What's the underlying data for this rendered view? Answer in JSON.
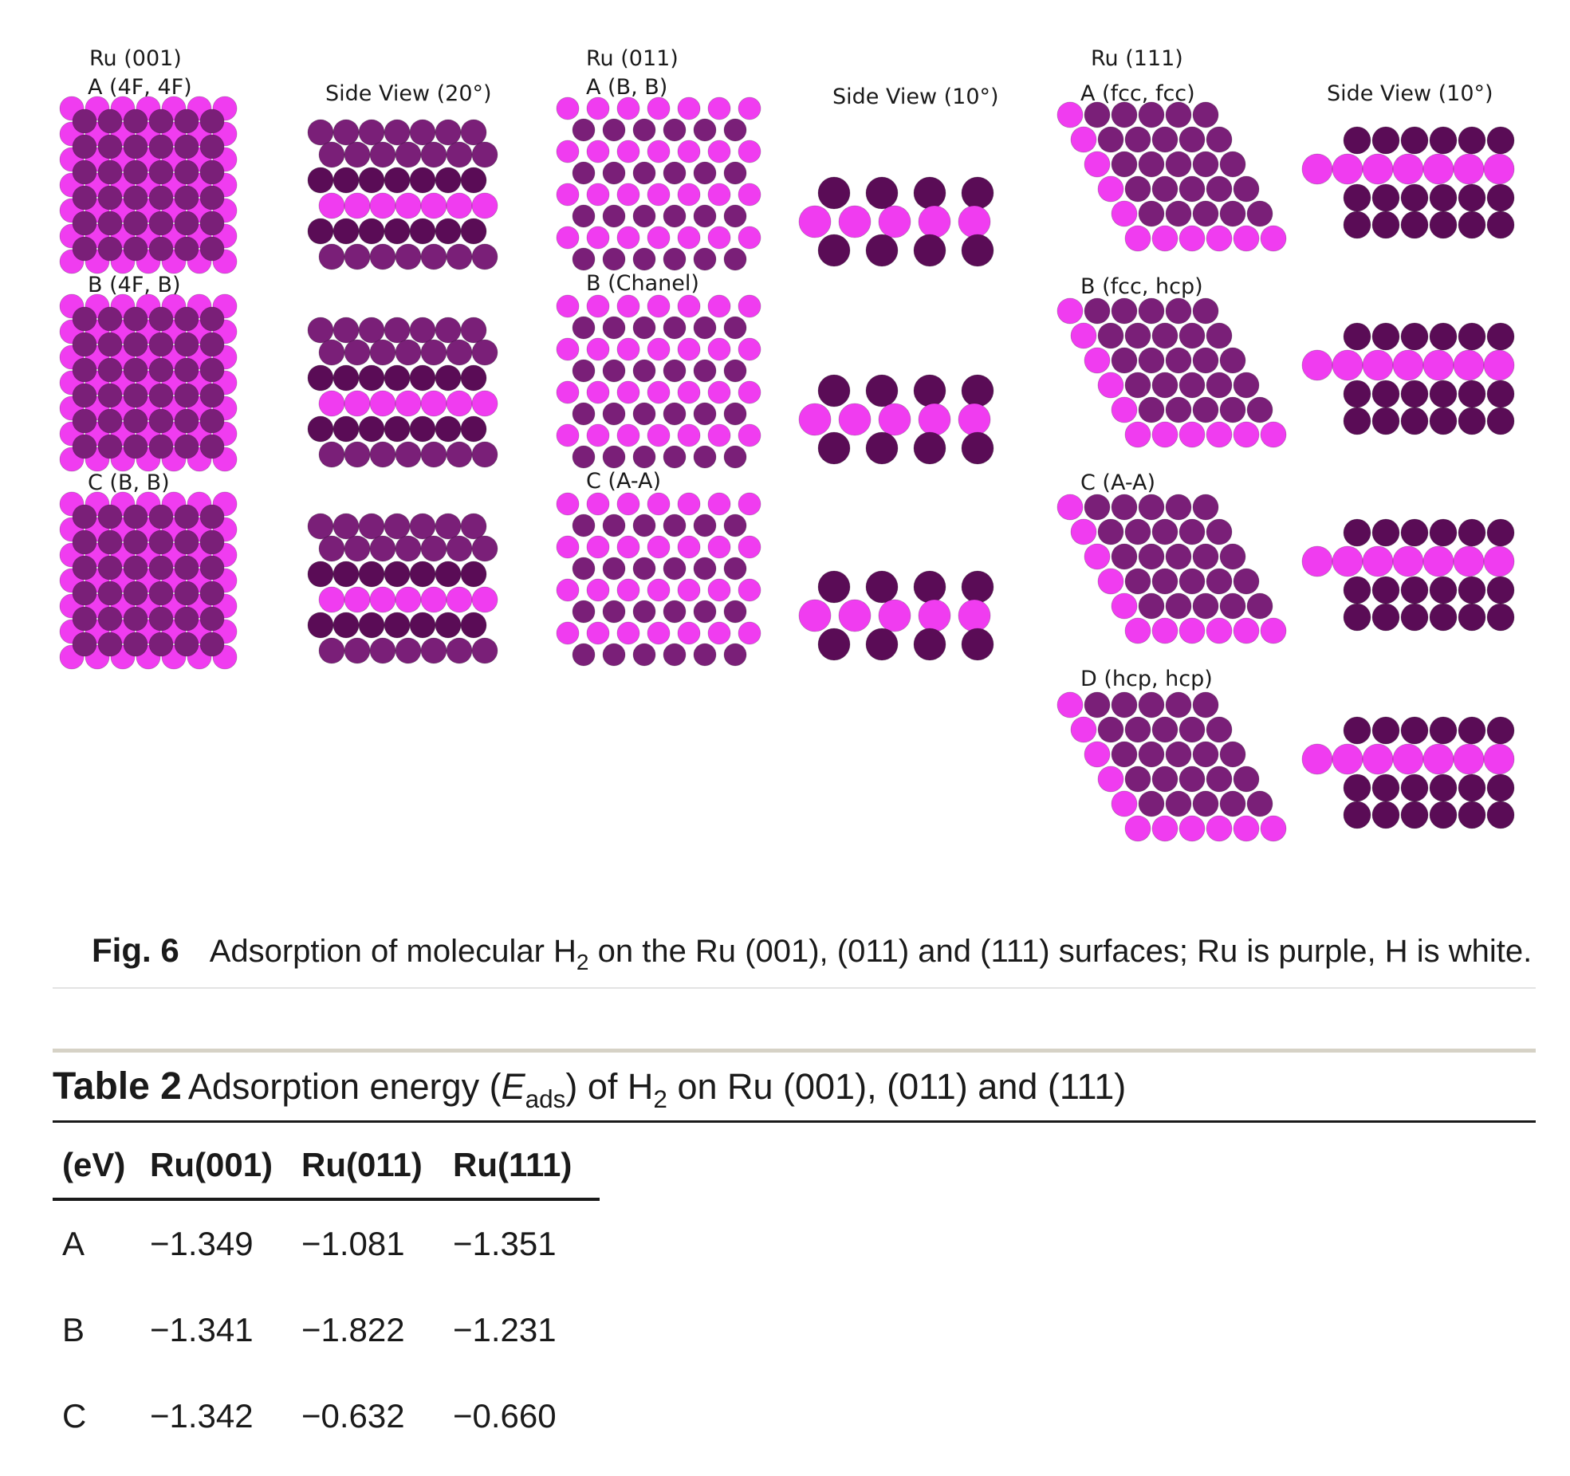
{
  "figure": {
    "labels": {
      "ru001_title": "Ru (001)",
      "ru011_title": "Ru (011)",
      "ru111_title": "Ru (111)",
      "side20": "Side View (20°)",
      "side10_a": "Side View (10°)",
      "side10_b": "Side View (10°)",
      "ru001_a": "A (4F, 4F)",
      "ru001_b": "B (4F, B)",
      "ru001_c": "C (B, B)",
      "ru011_a": "A (B, B)",
      "ru011_b": "B (Chanel)",
      "ru011_c": "C (A-A)",
      "ru111_a": "A (fcc, fcc)",
      "ru111_b": "B (fcc, hcp)",
      "ru111_c": "C (A-A)",
      "ru111_d": "D (hcp, hcp)"
    },
    "colors": {
      "ru_purple": "#7a1f78",
      "ru_dark": "#5a0c56",
      "ru_magenta": "#f03cf0",
      "h_white": "#f2f2f2"
    },
    "caption": {
      "tag": "Fig. 6",
      "pre": "Adsorption of molecular H",
      "sub": "2",
      "post": " on the Ru (001), (011) and (111) surfaces; Ru is purple, H is white."
    }
  },
  "table": {
    "tag": "Table 2",
    "title_1": "Adsorption energy (",
    "title_e": "E",
    "title_ads": "ads",
    "title_2": ") of H",
    "title_sub": "2",
    "title_3": " on Ru (001), (011) and (111)",
    "headers": [
      "(eV)",
      "Ru(001)",
      "Ru(011)",
      "Ru(111)"
    ],
    "rows": [
      [
        "A",
        "−1.349",
        "−1.081",
        "−1.351"
      ],
      [
        "B",
        "−1.341",
        "−1.822",
        "−1.231"
      ],
      [
        "C",
        "−1.342",
        "−0.632",
        "−0.660"
      ]
    ]
  }
}
